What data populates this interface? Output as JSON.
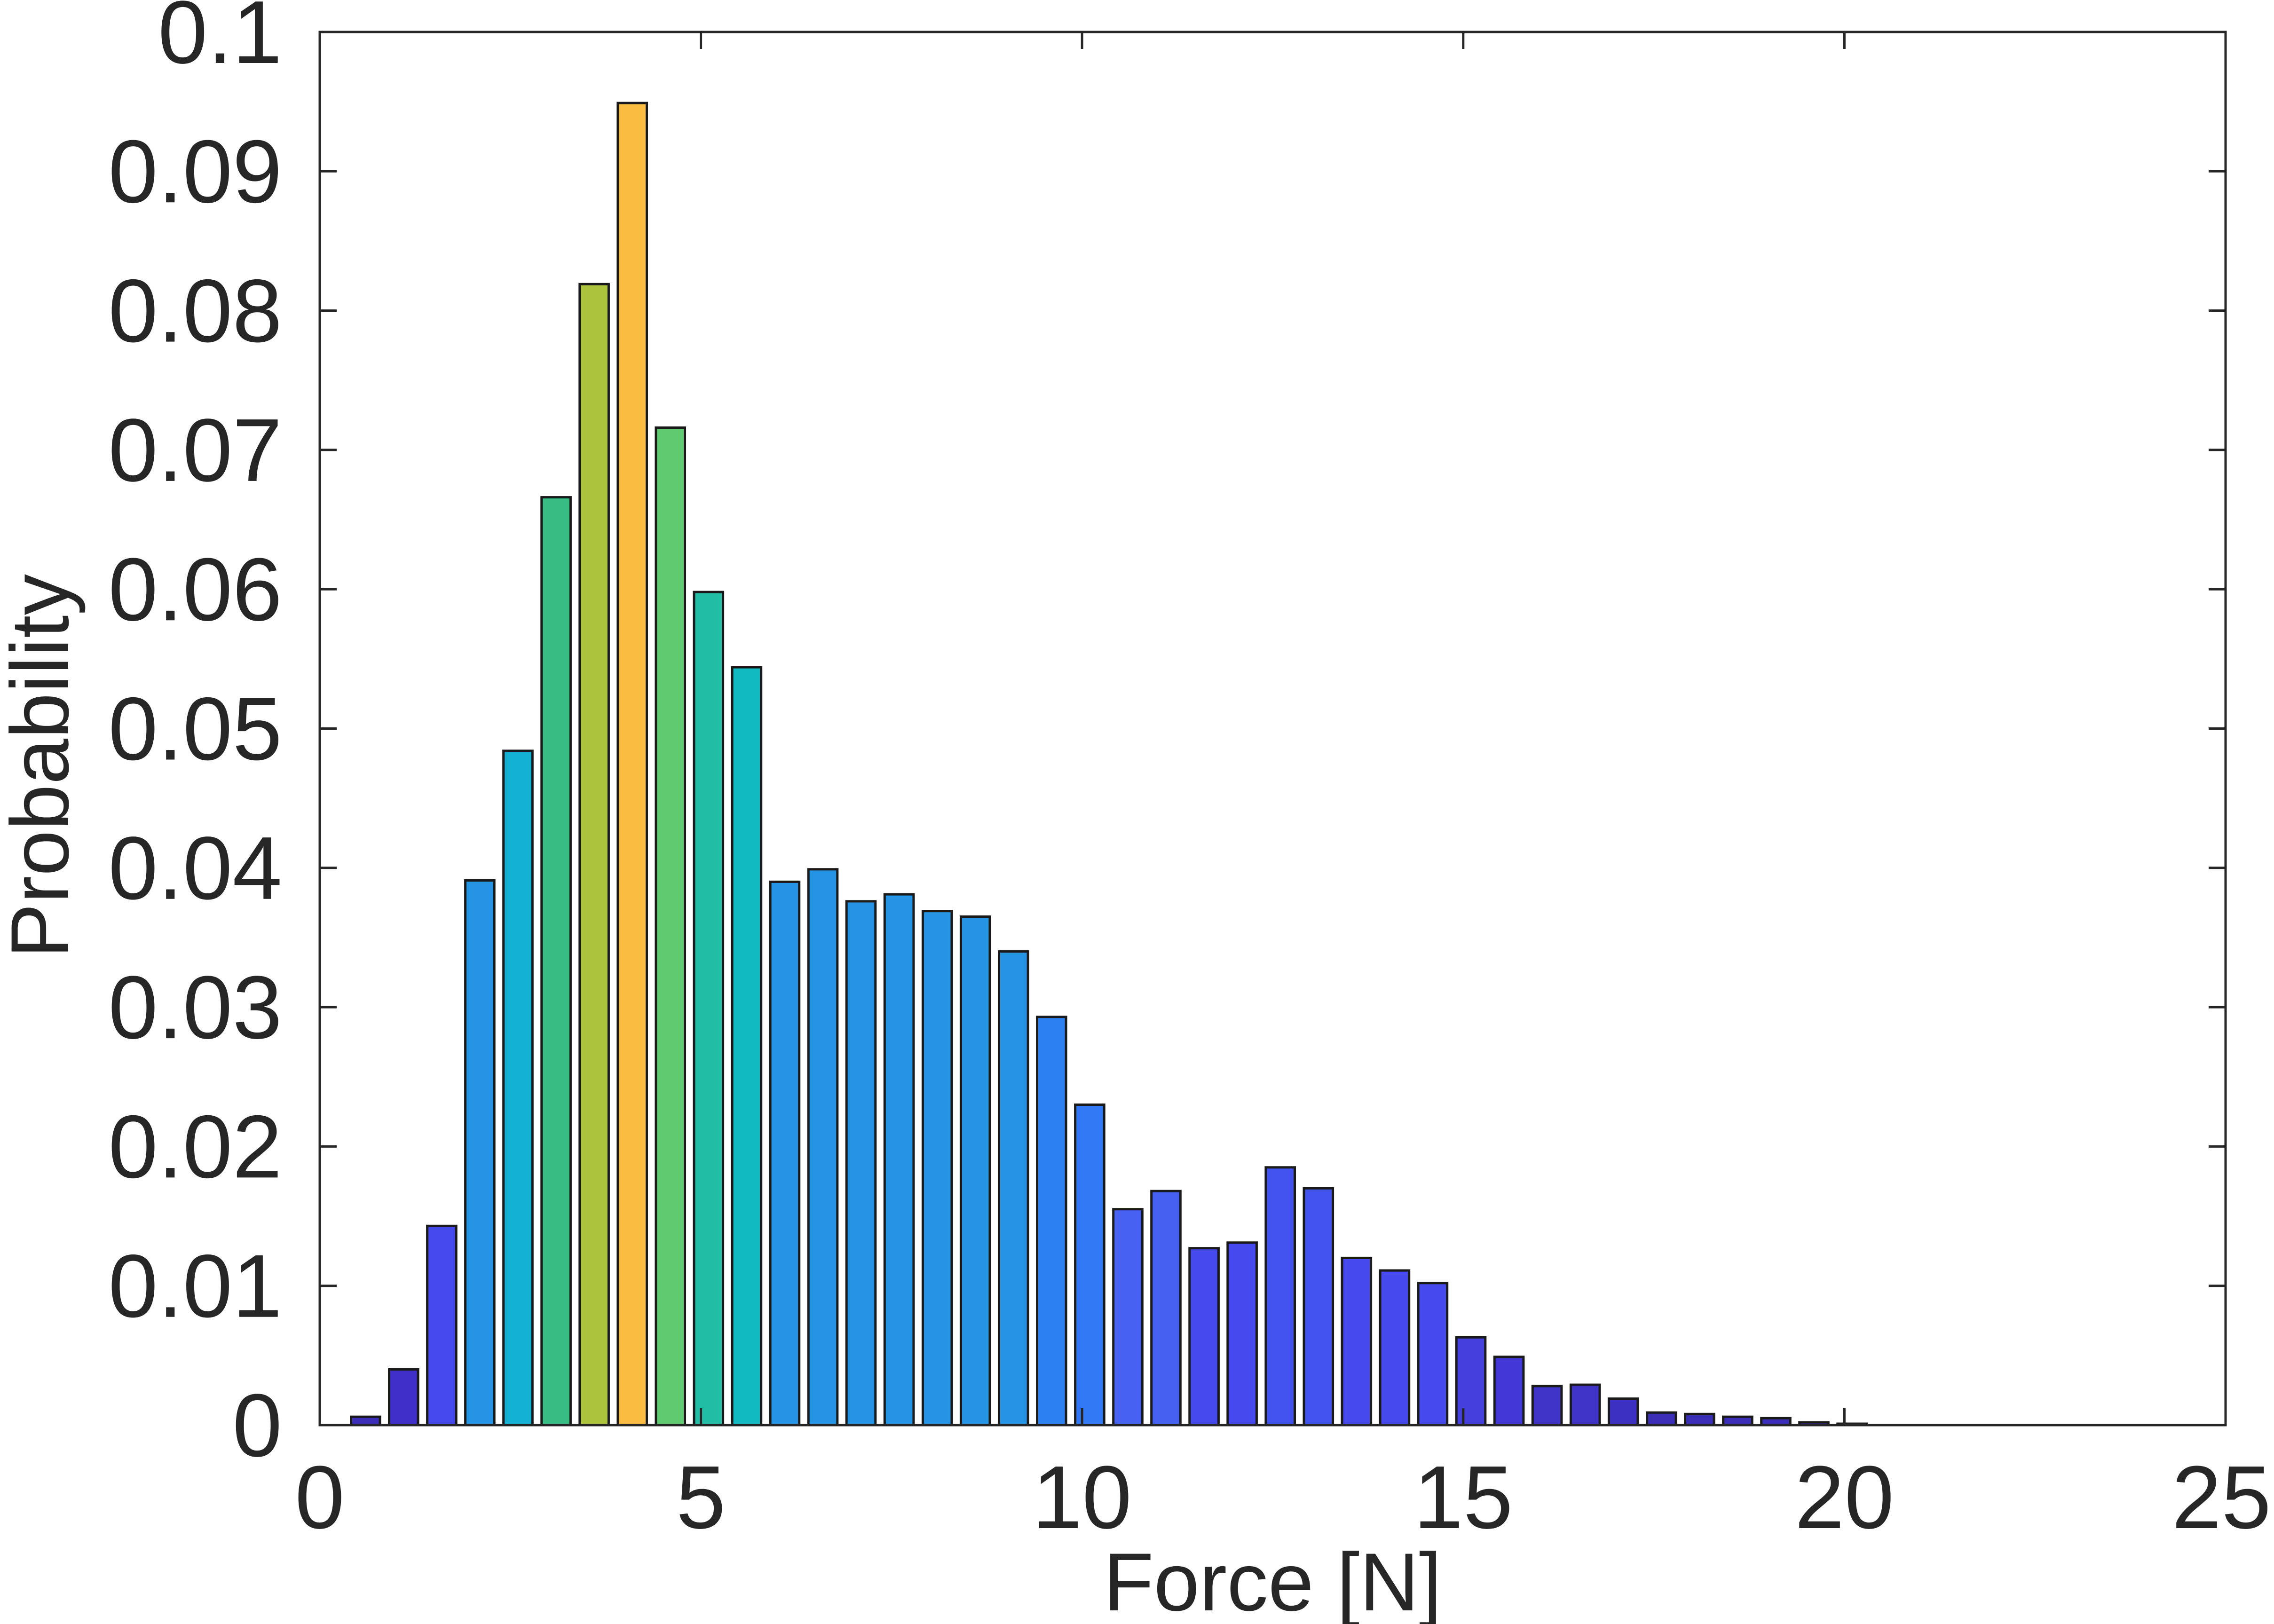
{
  "chart_data": {
    "type": "bar",
    "title": "",
    "xlabel": "Force [N]",
    "ylabel": "Probability",
    "xlim": [
      0,
      25
    ],
    "ylim": [
      0,
      0.1
    ],
    "xticks": [
      0,
      5,
      10,
      15,
      20,
      25
    ],
    "xtick_labels": [
      "0",
      "5",
      "10",
      "15",
      "20",
      "25"
    ],
    "yticks": [
      0,
      0.01,
      0.02,
      0.03,
      0.04,
      0.05,
      0.06,
      0.07,
      0.08,
      0.09,
      0.1
    ],
    "ytick_labels": [
      "0",
      "0.01",
      "0.02",
      "0.03",
      "0.04",
      "0.05",
      "0.06",
      "0.07",
      "0.08",
      "0.09",
      "0.1"
    ],
    "grid": false,
    "box": true,
    "bar_width": 0.38,
    "colormap": "parula-like, color scaled by bar height",
    "bar_stroke_color": "#1a1a1a",
    "bars": [
      {
        "x": 0.6,
        "value": 0.0006,
        "color": "#3a2fb6"
      },
      {
        "x": 1.1,
        "value": 0.004,
        "color": "#4030c9"
      },
      {
        "x": 1.6,
        "value": 0.0143,
        "color": "#4649ec"
      },
      {
        "x": 2.1,
        "value": 0.0391,
        "color": "#2494e3"
      },
      {
        "x": 2.6,
        "value": 0.0484,
        "color": "#13b1d2"
      },
      {
        "x": 3.1,
        "value": 0.0666,
        "color": "#37bc83"
      },
      {
        "x": 3.6,
        "value": 0.0819,
        "color": "#adc43f"
      },
      {
        "x": 4.1,
        "value": 0.0949,
        "color": "#f9bc41"
      },
      {
        "x": 4.6,
        "value": 0.0716,
        "color": "#5fca70"
      },
      {
        "x": 5.1,
        "value": 0.0598,
        "color": "#22bea6"
      },
      {
        "x": 5.6,
        "value": 0.0544,
        "color": "#10bac0"
      },
      {
        "x": 6.1,
        "value": 0.039,
        "color": "#2494e3"
      },
      {
        "x": 6.6,
        "value": 0.0399,
        "color": "#2494e3"
      },
      {
        "x": 7.1,
        "value": 0.0376,
        "color": "#2494e3"
      },
      {
        "x": 7.6,
        "value": 0.0381,
        "color": "#2494e3"
      },
      {
        "x": 8.1,
        "value": 0.0369,
        "color": "#2494e3"
      },
      {
        "x": 8.6,
        "value": 0.0365,
        "color": "#2494e3"
      },
      {
        "x": 9.1,
        "value": 0.034,
        "color": "#2494e3"
      },
      {
        "x": 9.6,
        "value": 0.0293,
        "color": "#2d80f0"
      },
      {
        "x": 10.1,
        "value": 0.023,
        "color": "#3179f5"
      },
      {
        "x": 10.6,
        "value": 0.0155,
        "color": "#4563f0"
      },
      {
        "x": 11.1,
        "value": 0.0168,
        "color": "#4360f0"
      },
      {
        "x": 11.6,
        "value": 0.0127,
        "color": "#4649ec"
      },
      {
        "x": 12.1,
        "value": 0.0131,
        "color": "#4649ec"
      },
      {
        "x": 12.6,
        "value": 0.0185,
        "color": "#4353ef"
      },
      {
        "x": 13.1,
        "value": 0.017,
        "color": "#4353ef"
      },
      {
        "x": 13.6,
        "value": 0.012,
        "color": "#4649ec"
      },
      {
        "x": 14.1,
        "value": 0.0111,
        "color": "#4649ec"
      },
      {
        "x": 14.6,
        "value": 0.0102,
        "color": "#4649ec"
      },
      {
        "x": 15.1,
        "value": 0.0063,
        "color": "#4340dd"
      },
      {
        "x": 15.6,
        "value": 0.0049,
        "color": "#4238d8"
      },
      {
        "x": 16.1,
        "value": 0.0028,
        "color": "#3f33c8"
      },
      {
        "x": 16.6,
        "value": 0.0029,
        "color": "#3f33c8"
      },
      {
        "x": 17.1,
        "value": 0.0019,
        "color": "#3c30c0"
      },
      {
        "x": 17.6,
        "value": 0.0009,
        "color": "#3a2fb6"
      },
      {
        "x": 18.1,
        "value": 0.0008,
        "color": "#3a2fb6"
      },
      {
        "x": 18.6,
        "value": 0.0006,
        "color": "#3a2fb6"
      },
      {
        "x": 19.1,
        "value": 0.0005,
        "color": "#3a2fb6"
      },
      {
        "x": 19.6,
        "value": 0.0002,
        "color": "#3a2fb6"
      },
      {
        "x": 20.1,
        "value": 0.0001,
        "color": "#3a2fb6"
      }
    ]
  }
}
